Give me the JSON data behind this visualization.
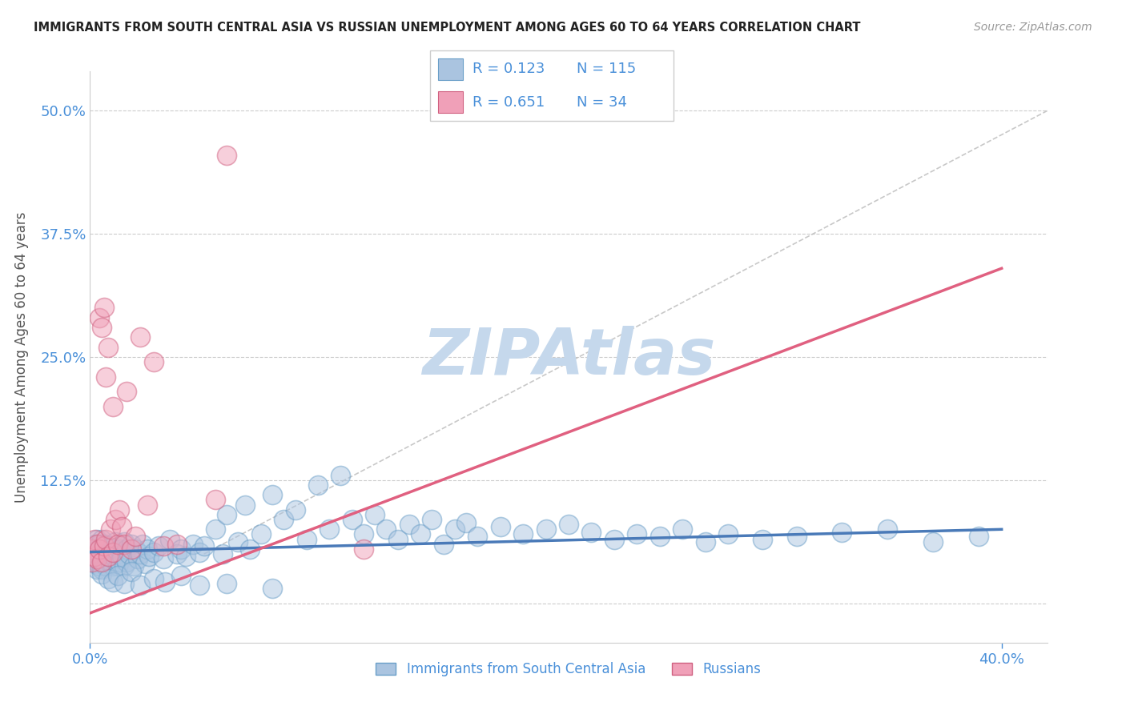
{
  "title": "IMMIGRANTS FROM SOUTH CENTRAL ASIA VS RUSSIAN UNEMPLOYMENT AMONG AGES 60 TO 64 YEARS CORRELATION CHART",
  "source": "Source: ZipAtlas.com",
  "ylabel": "Unemployment Among Ages 60 to 64 years",
  "xlim": [
    0.0,
    0.42
  ],
  "ylim": [
    -0.04,
    0.54
  ],
  "xticks": [
    0.0,
    0.4
  ],
  "xticklabels": [
    "0.0%",
    "40.0%"
  ],
  "yticks": [
    0.0,
    0.125,
    0.25,
    0.375,
    0.5
  ],
  "yticklabels": [
    "",
    "12.5%",
    "25.0%",
    "37.5%",
    "50.0%"
  ],
  "legend_series": [
    {
      "label": "Immigrants from South Central Asia",
      "color": "#aac4e0",
      "edge": "#6a9fc8",
      "R": 0.123,
      "N": 115
    },
    {
      "label": "Russians",
      "color": "#f0a0b8",
      "edge": "#d06080",
      "R": 0.651,
      "N": 34
    }
  ],
  "watermark": "ZIPAtlas",
  "watermark_color": "#c5d8ec",
  "background_color": "#ffffff",
  "grid_color": "#cccccc",
  "title_color": "#222222",
  "axis_label_color": "#555555",
  "tick_label_color": "#4a90d9",
  "series1_line_color": "#4a7ab8",
  "series2_line_color": "#e06080",
  "ref_line_color": "#bbbbbb",
  "blue_scatter_x": [
    0.001,
    0.001,
    0.002,
    0.002,
    0.002,
    0.003,
    0.003,
    0.003,
    0.003,
    0.004,
    0.004,
    0.004,
    0.005,
    0.005,
    0.005,
    0.005,
    0.006,
    0.006,
    0.006,
    0.007,
    0.007,
    0.007,
    0.008,
    0.008,
    0.009,
    0.009,
    0.01,
    0.01,
    0.011,
    0.011,
    0.012,
    0.012,
    0.013,
    0.013,
    0.014,
    0.015,
    0.015,
    0.016,
    0.016,
    0.017,
    0.018,
    0.019,
    0.02,
    0.021,
    0.022,
    0.023,
    0.024,
    0.025,
    0.026,
    0.028,
    0.03,
    0.032,
    0.035,
    0.038,
    0.04,
    0.042,
    0.045,
    0.048,
    0.05,
    0.055,
    0.058,
    0.06,
    0.065,
    0.068,
    0.07,
    0.075,
    0.08,
    0.085,
    0.09,
    0.095,
    0.1,
    0.105,
    0.11,
    0.115,
    0.12,
    0.125,
    0.13,
    0.135,
    0.14,
    0.145,
    0.15,
    0.155,
    0.16,
    0.165,
    0.17,
    0.18,
    0.19,
    0.2,
    0.21,
    0.22,
    0.23,
    0.24,
    0.25,
    0.26,
    0.27,
    0.28,
    0.295,
    0.31,
    0.33,
    0.35,
    0.37,
    0.39,
    0.005,
    0.008,
    0.01,
    0.012,
    0.015,
    0.018,
    0.022,
    0.028,
    0.033,
    0.04,
    0.048,
    0.06,
    0.08
  ],
  "blue_scatter_y": [
    0.055,
    0.045,
    0.06,
    0.04,
    0.05,
    0.065,
    0.042,
    0.055,
    0.035,
    0.05,
    0.06,
    0.038,
    0.055,
    0.045,
    0.065,
    0.035,
    0.05,
    0.042,
    0.06,
    0.048,
    0.055,
    0.038,
    0.045,
    0.058,
    0.052,
    0.04,
    0.055,
    0.038,
    0.062,
    0.045,
    0.05,
    0.038,
    0.055,
    0.042,
    0.048,
    0.062,
    0.038,
    0.055,
    0.042,
    0.05,
    0.06,
    0.038,
    0.055,
    0.045,
    0.05,
    0.06,
    0.04,
    0.055,
    0.048,
    0.052,
    0.058,
    0.045,
    0.065,
    0.05,
    0.055,
    0.048,
    0.06,
    0.052,
    0.058,
    0.075,
    0.05,
    0.09,
    0.062,
    0.1,
    0.055,
    0.07,
    0.11,
    0.085,
    0.095,
    0.065,
    0.12,
    0.075,
    0.13,
    0.085,
    0.07,
    0.09,
    0.075,
    0.065,
    0.08,
    0.07,
    0.085,
    0.06,
    0.075,
    0.082,
    0.068,
    0.078,
    0.07,
    0.075,
    0.08,
    0.072,
    0.065,
    0.07,
    0.068,
    0.075,
    0.062,
    0.07,
    0.065,
    0.068,
    0.072,
    0.075,
    0.062,
    0.068,
    0.03,
    0.025,
    0.022,
    0.028,
    0.02,
    0.032,
    0.018,
    0.025,
    0.022,
    0.028,
    0.018,
    0.02,
    0.015
  ],
  "pink_scatter_x": [
    0.001,
    0.001,
    0.002,
    0.002,
    0.003,
    0.003,
    0.004,
    0.004,
    0.005,
    0.005,
    0.006,
    0.006,
    0.007,
    0.007,
    0.008,
    0.008,
    0.009,
    0.01,
    0.01,
    0.011,
    0.012,
    0.013,
    0.014,
    0.015,
    0.016,
    0.018,
    0.02,
    0.022,
    0.025,
    0.028,
    0.032,
    0.038,
    0.055,
    0.12
  ],
  "pink_scatter_y": [
    0.055,
    0.042,
    0.048,
    0.065,
    0.06,
    0.045,
    0.29,
    0.055,
    0.28,
    0.042,
    0.3,
    0.058,
    0.23,
    0.065,
    0.26,
    0.048,
    0.075,
    0.2,
    0.052,
    0.085,
    0.06,
    0.095,
    0.078,
    0.06,
    0.215,
    0.055,
    0.068,
    0.27,
    0.1,
    0.245,
    0.058,
    0.06,
    0.105,
    0.055
  ],
  "pink_scatter_outlier_x": [
    0.06
  ],
  "pink_scatter_outlier_y": [
    0.455
  ],
  "blue_trend_x": [
    0.0,
    0.4
  ],
  "blue_trend_y": [
    0.052,
    0.075
  ],
  "pink_trend_x": [
    0.0,
    0.4
  ],
  "pink_trend_y": [
    -0.01,
    0.34
  ],
  "ref_line_x": [
    0.05,
    0.42
  ],
  "ref_line_y": [
    0.05,
    0.5
  ]
}
